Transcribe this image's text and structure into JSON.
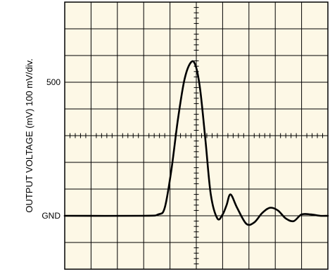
{
  "chart_data": {
    "type": "line",
    "title": "",
    "xlabel": "",
    "ylabel": "OUTPUT VOLTAGE (mV) 100 mV/div.",
    "ylim": [
      -200,
      800
    ],
    "y_ticks": [
      {
        "value": 500,
        "label": "500"
      },
      {
        "value": 0,
        "label": "GND"
      }
    ],
    "grid": true,
    "x_divisions": 10,
    "y_divisions": 10,
    "plot_background": "#fdf8e6",
    "trace_color": "#000000",
    "series": [
      {
        "name": "",
        "x": [
          0.0,
          3.0,
          3.55,
          3.8,
          4.05,
          4.3,
          4.55,
          4.8,
          4.98,
          5.15,
          5.35,
          5.55,
          5.8,
          6.0,
          6.15,
          6.3,
          6.55,
          6.9,
          7.2,
          7.5,
          7.8,
          8.1,
          8.4,
          8.7,
          9.0,
          9.35,
          9.7,
          10.0
        ],
        "y": [
          0,
          0,
          5,
          30,
          170,
          360,
          510,
          575,
          560,
          470,
          280,
          80,
          -10,
          5,
          40,
          80,
          30,
          -30,
          -25,
          10,
          30,
          20,
          -10,
          -20,
          5,
          5,
          0,
          0
        ]
      }
    ]
  }
}
